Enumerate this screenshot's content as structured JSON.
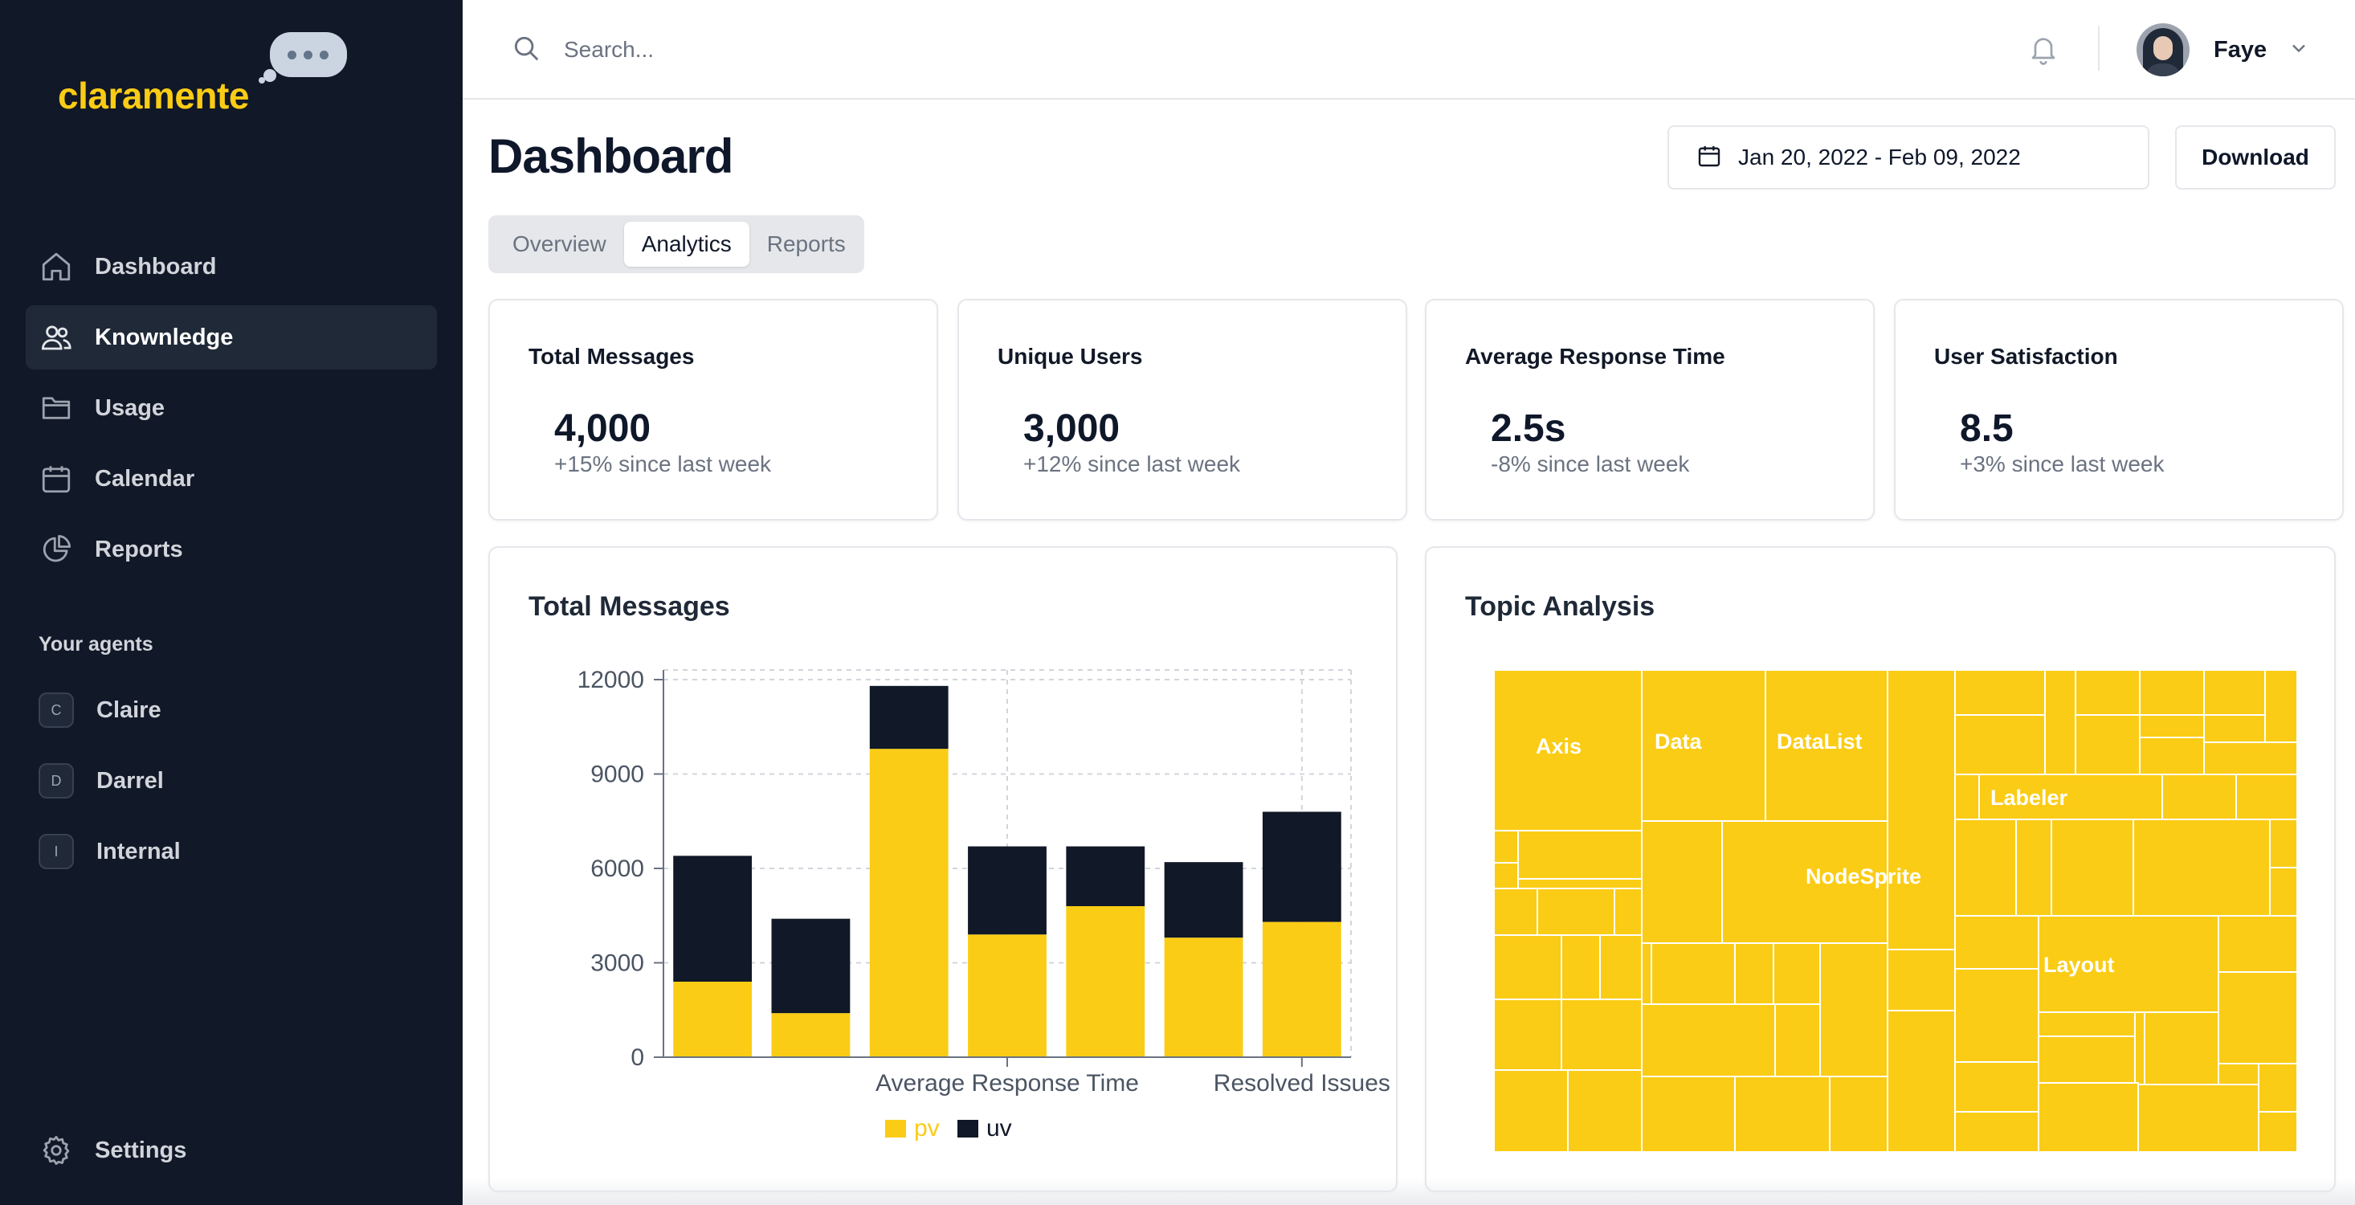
{
  "brand": {
    "name": "claramente",
    "color": "#facc15"
  },
  "sidebar": {
    "items": [
      {
        "label": "Dashboard",
        "icon": "home-icon",
        "active": false
      },
      {
        "label": "Knownledge",
        "icon": "users-icon",
        "active": true
      },
      {
        "label": "Usage",
        "icon": "folder-icon",
        "active": false
      },
      {
        "label": "Calendar",
        "icon": "calendar-icon",
        "active": false
      },
      {
        "label": "Reports",
        "icon": "pie-chart-icon",
        "active": false
      }
    ],
    "agents_label": "Your agents",
    "agents": [
      {
        "initial": "C",
        "label": "Claire"
      },
      {
        "initial": "D",
        "label": "Darrel"
      },
      {
        "initial": "I",
        "label": "Internal"
      }
    ],
    "settings_label": "Settings"
  },
  "topbar": {
    "search_placeholder": "Search...",
    "user_name": "Faye"
  },
  "header": {
    "title": "Dashboard",
    "date_range": "Jan 20, 2022 - Feb 09, 2022",
    "download_label": "Download"
  },
  "tabs": [
    {
      "label": "Overview",
      "active": false
    },
    {
      "label": "Analytics",
      "active": true
    },
    {
      "label": "Reports",
      "active": false
    }
  ],
  "stats": [
    {
      "title": "Total Messages",
      "value": "4,000",
      "change": "+15% since last week"
    },
    {
      "title": "Unique Users",
      "value": "3,000",
      "change": "+12% since last week"
    },
    {
      "title": "Average Response Time",
      "value": "2.5s",
      "change": "-8% since last week"
    },
    {
      "title": "User Satisfaction",
      "value": "8.5",
      "change": "+3% since last week"
    }
  ],
  "charts": {
    "messages_title": "Total Messages",
    "topic_title": "Topic Analysis"
  },
  "chart_data": [
    {
      "type": "bar",
      "stacked": true,
      "categories": [
        "",
        "",
        "",
        "Average Response Time",
        "",
        "",
        "Resolved Issues"
      ],
      "x_tick_labels": [
        "Average Response Time",
        "Resolved Issues"
      ],
      "series": [
        {
          "name": "pv",
          "color": "#facc15",
          "values": [
            2400,
            1400,
            9800,
            3900,
            4800,
            3800,
            4300
          ]
        },
        {
          "name": "uv",
          "color": "#111827",
          "values": [
            4000,
            3000,
            2000,
            2800,
            1900,
            2400,
            3500
          ]
        }
      ],
      "ylim": [
        0,
        12000
      ],
      "yticks": [
        0,
        3000,
        6000,
        9000,
        12000
      ],
      "grid": true,
      "legend": "bottom"
    },
    {
      "type": "treemap",
      "color": "#facc15",
      "labels": [
        "Axis",
        "Data",
        "DataList",
        "NodeSprite",
        "Labeler",
        "Layout"
      ]
    }
  ]
}
